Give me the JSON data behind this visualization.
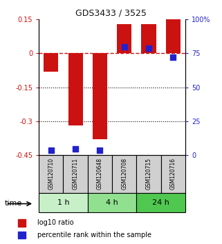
{
  "title": "GDS3433 / 3525",
  "samples": [
    "GSM120710",
    "GSM120711",
    "GSM120648",
    "GSM120708",
    "GSM120715",
    "GSM120716"
  ],
  "groups": [
    {
      "label": "1 h",
      "samples": [
        0,
        1
      ],
      "color": "#c8f0c8"
    },
    {
      "label": "4 h",
      "samples": [
        2,
        3
      ],
      "color": "#90e090"
    },
    {
      "label": "24 h",
      "samples": [
        4,
        5
      ],
      "color": "#50c850"
    }
  ],
  "log10_ratio": [
    -0.08,
    -0.32,
    -0.38,
    0.13,
    0.13,
    0.15
  ],
  "percentile_rank": [
    3.5,
    4.5,
    3.5,
    80,
    79,
    72
  ],
  "ylim_left": [
    -0.45,
    0.15
  ],
  "ylim_right": [
    0,
    100
  ],
  "yticks_left": [
    0.15,
    0,
    -0.15,
    -0.3,
    -0.45
  ],
  "yticks_right": [
    100,
    75,
    50,
    25,
    0
  ],
  "hlines_dotted": [
    -0.15,
    -0.3
  ],
  "hline_dash": 0,
  "bar_color": "#cc1111",
  "dot_color": "#2222cc",
  "bar_width": 0.6,
  "dot_size": 28,
  "legend_items": [
    "log10 ratio",
    "percentile rank within the sample"
  ],
  "background_color": "#ffffff",
  "plot_bg": "#ffffff",
  "title_color": "#111111",
  "left_axis_color": "#cc1111",
  "right_axis_color": "#2222cc"
}
